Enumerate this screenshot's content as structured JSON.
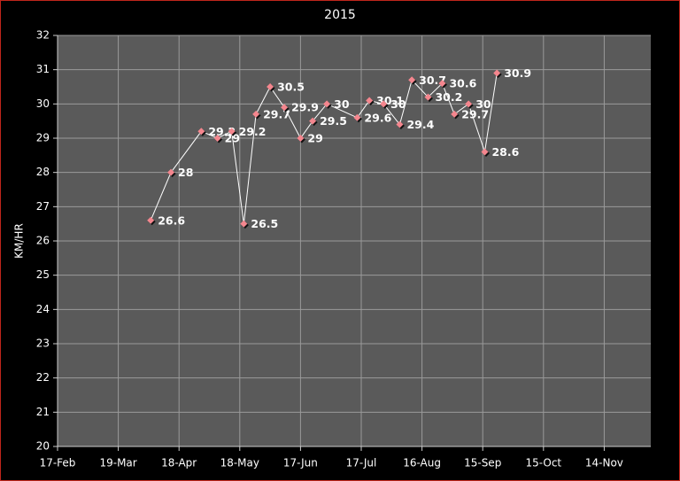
{
  "chart_data": {
    "type": "line",
    "title": "2015",
    "y_label": "KM/HR",
    "x": [
      "4-Apr",
      "14-Apr",
      "29-Apr",
      "7-May",
      "14-May",
      "20-May",
      "26-May",
      "2-Jun",
      "9-Jun",
      "17-Jun",
      "23-Jun",
      "30-Jun",
      "15-Jul",
      "21-Jul",
      "28-Jul",
      "5-Aug",
      "11-Aug",
      "19-Aug",
      "26-Aug",
      "1-Sep",
      "8-Sep",
      "16-Sep",
      "22-Sep"
    ],
    "values": [
      26.6,
      28,
      29.2,
      29,
      29.2,
      26.5,
      29.7,
      30.5,
      29.9,
      29,
      29.5,
      30,
      29.6,
      30.1,
      30,
      29.4,
      30.7,
      30.2,
      30.6,
      29.7,
      30,
      28.6,
      30.9
    ],
    "line_color": "#ffffff",
    "marker_color": "#f4868e",
    "xlim": [
      "17-Feb",
      "7-Dec"
    ],
    "xticks": [
      "17-Feb",
      "19-Mar",
      "18-Apr",
      "18-May",
      "17-Jun",
      "17-Jul",
      "16-Aug",
      "15-Sep",
      "15-Oct",
      "14-Nov"
    ],
    "ylim": [
      20,
      32
    ],
    "yticks": [
      20,
      21,
      22,
      23,
      24,
      25,
      26,
      27,
      28,
      29,
      30,
      31,
      32
    ],
    "grid": true
  }
}
